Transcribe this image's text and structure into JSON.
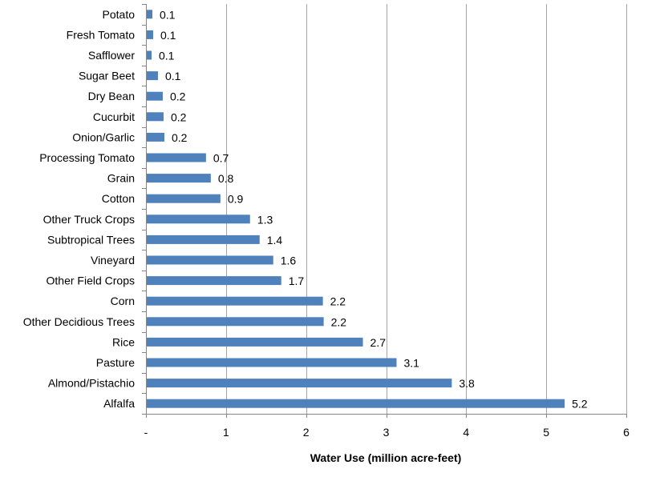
{
  "chart_data": {
    "type": "bar",
    "orientation": "horizontal",
    "categories": [
      "Potato",
      "Fresh Tomato",
      "Safflower",
      "Sugar Beet",
      "Dry Bean",
      "Cucurbit",
      "Onion/Garlic",
      "Processing Tomato",
      "Grain",
      "Cotton",
      "Other Truck Crops",
      "Subtropical Trees",
      "Vineyard",
      "Other Field Crops",
      "Corn",
      "Other Decidious Trees",
      "Rice",
      "Pasture",
      "Almond/Pistachio",
      "Alfalfa"
    ],
    "values": [
      0.07,
      0.08,
      0.06,
      0.14,
      0.2,
      0.21,
      0.22,
      0.74,
      0.8,
      0.92,
      1.29,
      1.41,
      1.58,
      1.68,
      2.2,
      2.21,
      2.7,
      3.12,
      3.81,
      5.22
    ],
    "data_labels": [
      "0.1",
      "0.1",
      "0.1",
      "0.1",
      "0.2",
      "0.2",
      "0.2",
      "0.7",
      "0.8",
      "0.9",
      "1.3",
      "1.4",
      "1.6",
      "1.7",
      "2.2",
      "2.2",
      "2.7",
      "3.1",
      "3.8",
      "5.2"
    ],
    "xlabel": "Water Use (million acre-feet)",
    "ylabel": "",
    "xlim": [
      0,
      6
    ],
    "x_ticks": [
      0,
      1,
      2,
      3,
      4,
      5,
      6
    ],
    "x_tick_labels": [
      "-",
      "1",
      "2",
      "3",
      "4",
      "5",
      "6"
    ],
    "grid": "vertical major gridlines",
    "legend": "none",
    "colors": {
      "bar": "#4F81BD",
      "grid": "#A6A6A6",
      "axis": "#868686",
      "text": "#000000"
    }
  }
}
